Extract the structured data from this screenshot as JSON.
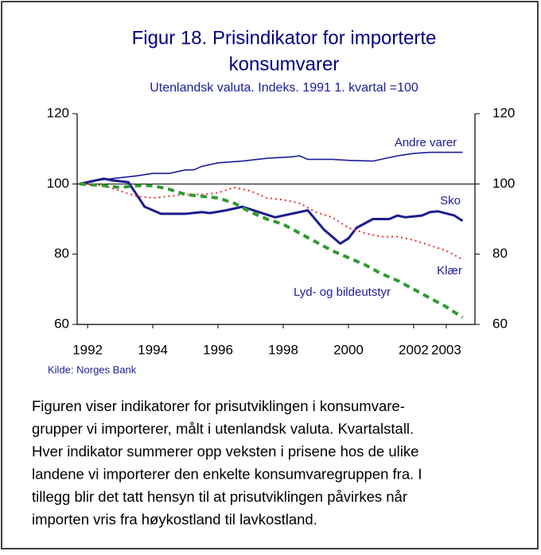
{
  "chart_data": {
    "type": "line",
    "title": [
      "Figur 18. Prisindikator for importerte",
      "konsumvarer"
    ],
    "subtitle": "Utenlandsk valuta. Indeks. 1991 1. kvartal =100",
    "xlim": [
      1991.68,
      2003.88
    ],
    "xticks": [
      1992,
      1994,
      1996,
      1998,
      2000,
      2002,
      2003
    ],
    "ylim": [
      60,
      120
    ],
    "yticks": [
      60,
      80,
      100,
      120
    ],
    "y2lim": [
      60,
      120
    ],
    "y2ticks": [
      60,
      80,
      100,
      120
    ],
    "reference_line": 100,
    "series": [
      {
        "name": "Andre varer",
        "color": "#1c1c9c",
        "line_width": 1.6,
        "line_style": "solid",
        "x": [
          1991.75,
          1992.25,
          1992.75,
          1993.5,
          1994,
          1994.5,
          1995,
          1995.25,
          1995.5,
          1996,
          1996.75,
          1997.5,
          1998.25,
          1998.5,
          1998.75,
          1999.5,
          2000,
          2000.75,
          2001,
          2001.5,
          2002,
          2002.5,
          2003.5
        ],
        "values": [
          100,
          101,
          101.5,
          102.3,
          103,
          103,
          104,
          104,
          105,
          106,
          106.5,
          107.3,
          107.7,
          108,
          107,
          107,
          106.7,
          106.5,
          107,
          108,
          108.7,
          109,
          109
        ]
      },
      {
        "name": "Sko",
        "color": "#1c1c8c",
        "line_width": 3,
        "line_style": "solid",
        "x": [
          1991.75,
          1992,
          1992.5,
          1992.75,
          1993.25,
          1993.75,
          1994.25,
          1994.5,
          1995,
          1995.5,
          1995.75,
          1996.25,
          1996.75,
          1997.25,
          1997.75,
          1998.25,
          1998.75,
          1999.25,
          1999.75,
          2000,
          2000.25,
          2000.75,
          2001.25,
          2001.5,
          2001.75,
          2002.25,
          2002.5,
          2002.75,
          2003.25,
          2003.5
        ],
        "values": [
          100,
          100.5,
          101.5,
          101,
          100.5,
          93.5,
          91.5,
          91.5,
          91.5,
          92,
          91.7,
          92.5,
          93.5,
          92,
          90.5,
          91.5,
          92.5,
          87,
          83,
          84.5,
          87.5,
          90,
          90,
          91,
          90.5,
          91,
          92,
          92.2,
          91,
          89.5
        ]
      },
      {
        "name": "Klær",
        "color": "#e83030",
        "line_width": 2,
        "line_style": "dotted",
        "x": [
          1991.75,
          1992.5,
          1993,
          1993.5,
          1994,
          1994.5,
          1995,
          1995.5,
          1996,
          1996.5,
          1997,
          1997.5,
          1998,
          1998.5,
          1999,
          1999.5,
          2000,
          2000.5,
          2001,
          2001.5,
          2002,
          2002.5,
          2003,
          2003.5
        ],
        "values": [
          100,
          99.5,
          98,
          96.5,
          96,
          96.5,
          97,
          97,
          97.5,
          99,
          98,
          96,
          95.5,
          94.5,
          92,
          90.5,
          87.5,
          86,
          85,
          85,
          84,
          82.5,
          81,
          78.5
        ]
      },
      {
        "name": "Lyd- og bildeutstyr",
        "color": "#2e9a2e",
        "line_width": 4,
        "line_style": "dashed",
        "x": [
          1991.75,
          1992.5,
          1993,
          1993.5,
          1994,
          1994.5,
          1995,
          1995.5,
          1996,
          1996.5,
          1997,
          1997.5,
          1998,
          1998.5,
          1999,
          1999.5,
          2000,
          2000.5,
          2001,
          2001.5,
          2002,
          2002.5,
          2003,
          2003.5
        ],
        "values": [
          100,
          99.5,
          99,
          99.5,
          99.5,
          98.5,
          97,
          96.5,
          96,
          94.5,
          92,
          90,
          88.5,
          86,
          83.5,
          81,
          79,
          77,
          74.5,
          72.5,
          70,
          67.5,
          65,
          62
        ]
      }
    ],
    "source": "Kilde: Norges Bank",
    "caption": [
      "Figuren viser indikatorer for prisutviklingen i konsumvare-",
      "grupper vi importerer, målt i utenlandsk valuta. Kvartalstall.",
      "Hver indikator summerer opp veksten i prisene hos de ulike",
      "landene vi importerer den enkelte konsumvaregruppen fra. I",
      "tillegg blir det tatt hensyn til at prisutviklingen påvirkes når",
      "importen vris fra høykostland til lavkostland."
    ]
  }
}
